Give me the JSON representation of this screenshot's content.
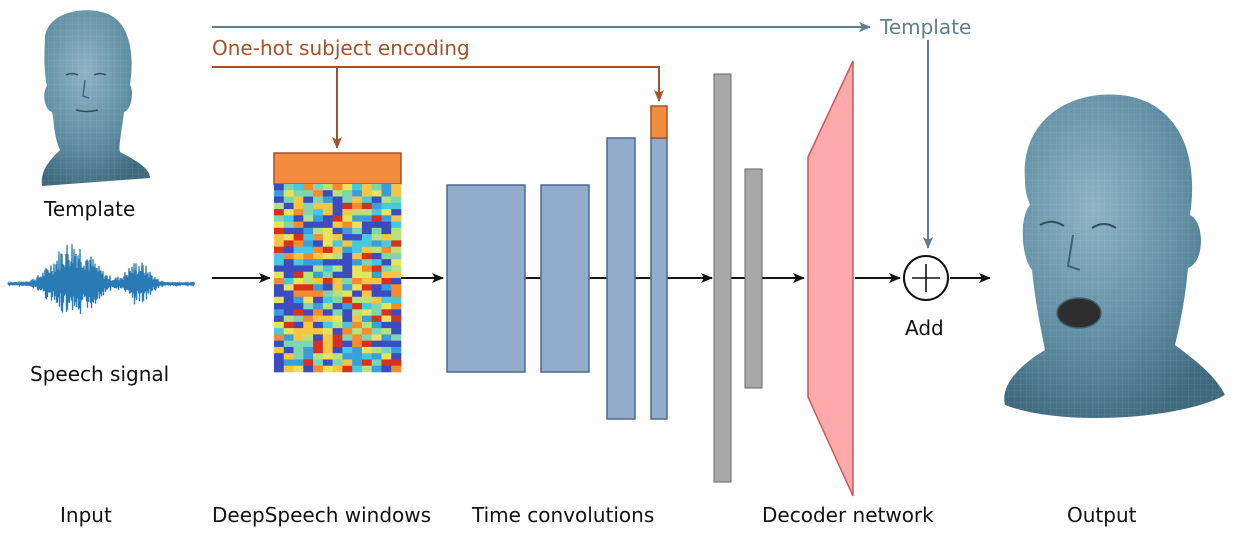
{
  "labels": {
    "template_head": "Template",
    "speech_signal": "Speech signal",
    "one_hot": "One-hot subject encoding",
    "template_top": "Template",
    "add": "Add"
  },
  "stages": {
    "input": "Input",
    "deepspeech": "DeepSpeech windows",
    "time_conv": "Time convolutions",
    "decoder": "Decoder network",
    "output": "Output"
  },
  "colors": {
    "head_skin": "#5f8ea3",
    "onehot_orange": "#f58d3f",
    "onehot_arrow": "#a0522d",
    "template_arrow": "#5f7d8c",
    "conv_blue": "#92adcb",
    "conv_border": "#4a6a90",
    "fc_gray": "#a8a8a8",
    "decoder_pink": "#ffaaaa",
    "decoder_border": "#d05656",
    "waveform": "#2a7ab5"
  },
  "icons": {
    "template_head": "3d-face-template-icon",
    "output_head": "3d-face-output-icon",
    "speech": "waveform-icon",
    "add": "circle-plus-icon"
  }
}
